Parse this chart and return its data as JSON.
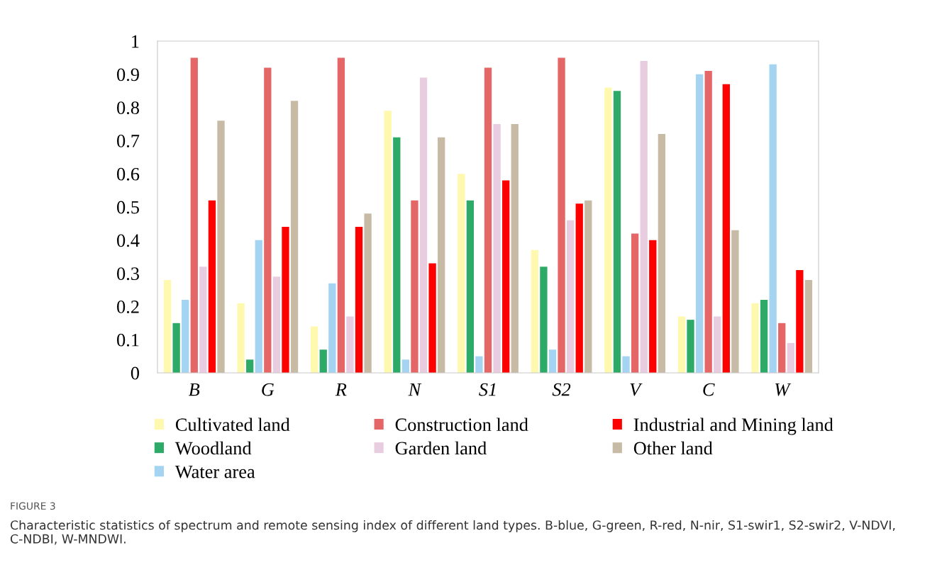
{
  "chart_data": {
    "type": "bar",
    "categories": [
      "B",
      "G",
      "R",
      "N",
      "S1",
      "S2",
      "V",
      "C",
      "W"
    ],
    "series": [
      {
        "name": "Cultivated land",
        "color": "#fff9b0",
        "values": [
          0.28,
          0.21,
          0.14,
          0.79,
          0.6,
          0.37,
          0.86,
          0.17,
          0.21
        ]
      },
      {
        "name": "Woodland",
        "color": "#2eaa68",
        "values": [
          0.15,
          0.04,
          0.07,
          0.71,
          0.52,
          0.32,
          0.85,
          0.16,
          0.22
        ]
      },
      {
        "name": "Water area",
        "color": "#a4d4f2",
        "values": [
          0.22,
          0.4,
          0.27,
          0.04,
          0.05,
          0.07,
          0.05,
          0.9,
          0.93
        ]
      },
      {
        "name": "Construction land",
        "color": "#e46666",
        "values": [
          0.95,
          0.92,
          0.95,
          0.52,
          0.92,
          0.95,
          0.42,
          0.91,
          0.15
        ]
      },
      {
        "name": "Garden land",
        "color": "#e8cce0",
        "values": [
          0.32,
          0.29,
          0.17,
          0.89,
          0.75,
          0.46,
          0.94,
          0.17,
          0.09
        ]
      },
      {
        "name": "Industrial and Mining land",
        "color": "#ff0000",
        "values": [
          0.52,
          0.44,
          0.44,
          0.33,
          0.58,
          0.51,
          0.4,
          0.87,
          0.31
        ]
      },
      {
        "name": "Other land",
        "color": "#c8bba6",
        "values": [
          0.76,
          0.82,
          0.48,
          0.71,
          0.75,
          0.52,
          0.72,
          0.43,
          0.28
        ]
      }
    ],
    "ylim": [
      0,
      1
    ],
    "yticks": [
      0,
      0.1,
      0.2,
      0.3,
      0.4,
      0.5,
      0.6,
      0.7,
      0.8,
      0.9,
      1
    ],
    "grid": false,
    "legend": "bottom",
    "annotations": [
      "FIGURE 3",
      "Characteristic statistics of spectrum and remote sensing index of different land types. B-blue, G-green, R-red, N-nir, S1-swir1, S2-swir2, V-NDVI, C-NDBI, W-MNDWI."
    ]
  }
}
